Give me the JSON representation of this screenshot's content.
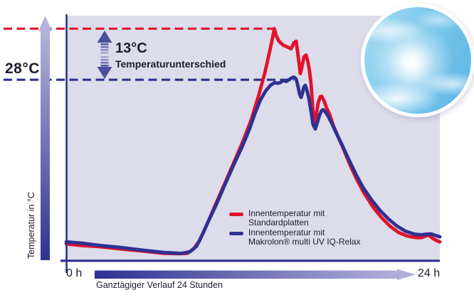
{
  "labels": {
    "y_ref": "28°C",
    "diff_value": "13°C",
    "diff_text": "Temperaturunterschied",
    "y_axis": "Temperatur in °C",
    "x_start": "0 h",
    "x_end": "24 h",
    "x_caption": "Ganztägiger Verlauf 24 Stunden"
  },
  "legend": [
    {
      "line1": "Innentemperatur mit",
      "line2": "Standardplatten",
      "color": "#e2122b"
    },
    {
      "line1": "Innentemperatur mit",
      "line2": "Makrolon® multi UV IQ-Relax",
      "color": "#2d3192"
    }
  ],
  "icons": {
    "sky": "sun-sky-photo-circle",
    "y_axis_arrow": "up-gradient-arrow",
    "x_axis_arrow": "right-gradient-arrow",
    "difference_arrow": "vertical-double-arrow"
  },
  "colors": {
    "background": "#ffffff",
    "plot_background": "#dcdcea",
    "red": "#e2122b",
    "blue": "#2d3192",
    "text": "#1c1c30",
    "gradient_light": "#b1afd8",
    "difference_arrow": "#4b4e9f"
  },
  "chart_data": {
    "type": "line",
    "xlabel": "Ganztägiger Verlauf 24 Stunden",
    "ylabel": "Temperatur in °C",
    "x_unit": "h",
    "y_unit": "°C",
    "x_range": [
      0,
      24
    ],
    "y_axis": {
      "min": -18.2,
      "max": 44.3,
      "tick_labels_shown": false,
      "labeled_reference_degC": 28
    },
    "grid": false,
    "legend_position": "inside-bottom-right",
    "annotations": {
      "red_dashed_peak_degC": 41,
      "blue_dashed_peak_degC": 28,
      "difference_degC": 13,
      "difference_label": "Temperaturunterschied"
    },
    "series": [
      {
        "name": "Innentemperatur mit Standardplatten",
        "color": "#e2122b",
        "points": [
          [
            0,
            -13.7
          ],
          [
            1.01,
            -14.1
          ],
          [
            2.15,
            -14.4
          ],
          [
            3.52,
            -15.0
          ],
          [
            4.89,
            -15.5
          ],
          [
            6.26,
            -16.1
          ],
          [
            7.27,
            -16.2
          ],
          [
            7.77,
            -16.1
          ],
          [
            8.18,
            -15.0
          ],
          [
            8.55,
            -13.0
          ],
          [
            9.01,
            -9.0
          ],
          [
            9.55,
            -4.1
          ],
          [
            10.15,
            1.3
          ],
          [
            10.74,
            6.7
          ],
          [
            11.34,
            12.3
          ],
          [
            11.89,
            17.9
          ],
          [
            12.34,
            23.7
          ],
          [
            12.75,
            29.6
          ],
          [
            13.07,
            35.2
          ],
          [
            13.26,
            38.8
          ],
          [
            13.37,
            41.0
          ],
          [
            13.49,
            39.2
          ],
          [
            13.67,
            37.8
          ],
          [
            13.94,
            36.8
          ],
          [
            14.22,
            36.3
          ],
          [
            14.45,
            35.9
          ],
          [
            14.63,
            37.4
          ],
          [
            14.77,
            37.8
          ],
          [
            14.9,
            34.1
          ],
          [
            15.04,
            29.6
          ],
          [
            15.13,
            31.1
          ],
          [
            15.27,
            33.8
          ],
          [
            15.41,
            34.3
          ],
          [
            15.54,
            32.3
          ],
          [
            15.63,
            30.2
          ],
          [
            15.73,
            26.9
          ],
          [
            15.82,
            21.5
          ],
          [
            15.91,
            17.9
          ],
          [
            15.98,
            17.0
          ],
          [
            16.05,
            18.8
          ],
          [
            16.18,
            22.0
          ],
          [
            16.32,
            23.7
          ],
          [
            16.41,
            23.8
          ],
          [
            16.55,
            22.8
          ],
          [
            16.73,
            20.8
          ],
          [
            16.91,
            19.3
          ],
          [
            17.14,
            16.6
          ],
          [
            17.42,
            13.9
          ],
          [
            17.78,
            10.7
          ],
          [
            18.24,
            6.3
          ],
          [
            18.7,
            2.4
          ],
          [
            19.15,
            -0.9
          ],
          [
            19.7,
            -4.3
          ],
          [
            20.25,
            -7.0
          ],
          [
            20.8,
            -9.2
          ],
          [
            21.35,
            -10.8
          ],
          [
            21.9,
            -11.7
          ],
          [
            22.45,
            -12.1
          ],
          [
            22.81,
            -12.1
          ],
          [
            23.09,
            -11.7
          ],
          [
            23.31,
            -11.5
          ],
          [
            23.54,
            -12.3
          ],
          [
            23.77,
            -12.8
          ],
          [
            24,
            -13.2
          ]
        ]
      },
      {
        "name": "Innentemperatur mit Makrolon® multi UV IQ-Relax",
        "color": "#2d3192",
        "points": [
          [
            0,
            -13.2
          ],
          [
            1.01,
            -13.5
          ],
          [
            2.15,
            -14.1
          ],
          [
            3.52,
            -14.6
          ],
          [
            4.89,
            -15.3
          ],
          [
            6.35,
            -15.9
          ],
          [
            7.41,
            -16.1
          ],
          [
            7.95,
            -15.7
          ],
          [
            8.37,
            -14.3
          ],
          [
            8.73,
            -11.5
          ],
          [
            9.14,
            -7.9
          ],
          [
            9.65,
            -3.6
          ],
          [
            10.19,
            1.3
          ],
          [
            10.74,
            6.2
          ],
          [
            11.29,
            10.9
          ],
          [
            11.75,
            15.2
          ],
          [
            12.11,
            19.3
          ],
          [
            12.48,
            22.9
          ],
          [
            12.8,
            25.1
          ],
          [
            13.12,
            26.6
          ],
          [
            13.39,
            27.3
          ],
          [
            13.58,
            27.1
          ],
          [
            13.76,
            27.3
          ],
          [
            13.94,
            27.8
          ],
          [
            14.13,
            27.6
          ],
          [
            14.31,
            28.0
          ],
          [
            14.49,
            28.5
          ],
          [
            14.63,
            28.7
          ],
          [
            14.77,
            28.2
          ],
          [
            14.9,
            26.2
          ],
          [
            14.99,
            24.4
          ],
          [
            15.09,
            23.5
          ],
          [
            15.18,
            24.7
          ],
          [
            15.27,
            26.2
          ],
          [
            15.36,
            26.6
          ],
          [
            15.45,
            25.5
          ],
          [
            15.59,
            23.3
          ],
          [
            15.73,
            19.9
          ],
          [
            15.86,
            16.6
          ],
          [
            16,
            15.5
          ],
          [
            16.14,
            17.2
          ],
          [
            16.27,
            19.0
          ],
          [
            16.41,
            20.2
          ],
          [
            16.5,
            20.4
          ],
          [
            16.64,
            19.9
          ],
          [
            16.82,
            18.8
          ],
          [
            17.05,
            17.0
          ],
          [
            17.33,
            14.6
          ],
          [
            17.69,
            11.7
          ],
          [
            18.15,
            7.8
          ],
          [
            18.61,
            4.0
          ],
          [
            19.06,
            0.7
          ],
          [
            19.61,
            -2.5
          ],
          [
            20.16,
            -5.2
          ],
          [
            20.71,
            -7.4
          ],
          [
            21.26,
            -9.2
          ],
          [
            21.81,
            -10.5
          ],
          [
            22.35,
            -11.2
          ],
          [
            22.81,
            -11.4
          ],
          [
            23.18,
            -11.2
          ],
          [
            23.45,
            -11.2
          ],
          [
            23.68,
            -11.5
          ],
          [
            24,
            -11.9
          ]
        ]
      }
    ]
  }
}
